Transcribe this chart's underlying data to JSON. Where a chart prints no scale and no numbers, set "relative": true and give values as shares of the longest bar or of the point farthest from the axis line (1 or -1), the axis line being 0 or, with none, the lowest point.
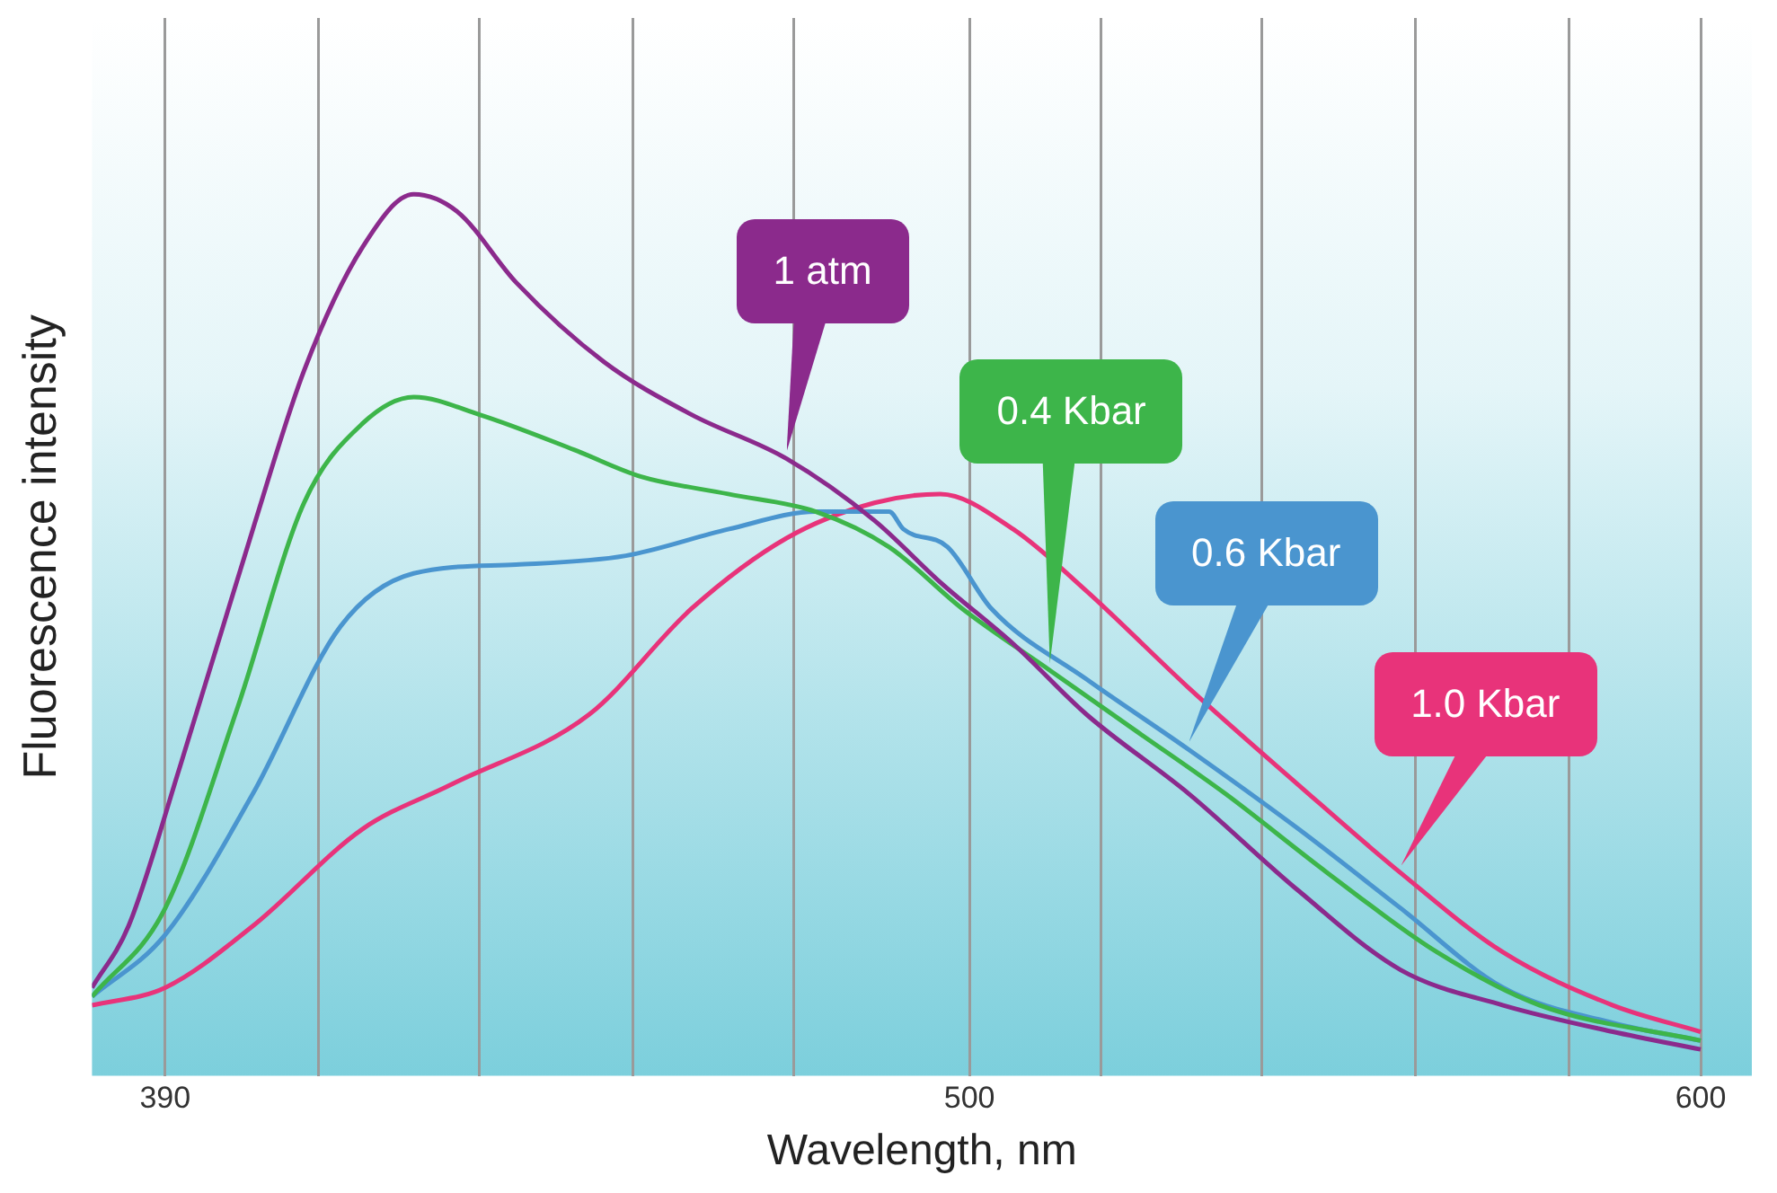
{
  "chart_data": {
    "type": "line",
    "relative": true,
    "xlabel": "Wavelength, nm",
    "ylabel": "Fluorescence intensity",
    "xlim": [
      380,
      607
    ],
    "xticks": [
      390,
      {
        "value": 411,
        "label": null
      },
      {
        "value": 433,
        "label": null
      },
      {
        "value": 454,
        "label": null
      },
      {
        "value": 476,
        "label": null
      },
      500,
      {
        "value": 518,
        "label": null
      },
      {
        "value": 540,
        "label": null
      },
      {
        "value": 561,
        "label": null
      },
      {
        "value": 582,
        "label": null
      },
      600
    ],
    "grid": "x",
    "marker": "none",
    "line_style": "solid",
    "legend": false,
    "series": [
      {
        "name": "1 atm",
        "color": "#8b2a8c",
        "x": [
          380,
          385,
          392,
          402,
          409,
          417,
          424,
          430,
          438,
          450,
          462,
          475,
          487,
          496,
          506,
          516,
          530,
          545,
          559,
          573,
          588,
          600
        ],
        "values": [
          0.1,
          0.17,
          0.35,
          0.62,
          0.8,
          0.94,
          1,
          0.98,
          0.9,
          0.81,
          0.75,
          0.7,
          0.63,
          0.56,
          0.49,
          0.41,
          0.32,
          0.21,
          0.12,
          0.08,
          0.05,
          0.03
        ]
      },
      {
        "name": "0.4 Kbar",
        "color": "#3db54a",
        "x": [
          380,
          390,
          400,
          409,
          417,
          424,
          433,
          446,
          455,
          467,
          479,
          489,
          499,
          511,
          523,
          535,
          549,
          564,
          578,
          600
        ],
        "values": [
          0.09,
          0.19,
          0.42,
          0.65,
          0.74,
          0.77,
          0.75,
          0.71,
          0.68,
          0.66,
          0.64,
          0.6,
          0.53,
          0.46,
          0.39,
          0.32,
          0.23,
          0.14,
          0.08,
          0.04
        ]
      },
      {
        "name": "0.6 Kbar",
        "color": "#4a95cf",
        "x": [
          380,
          390,
          402,
          414,
          424,
          438,
          453,
          467,
          479,
          489,
          491,
          497,
          503,
          516,
          530,
          545,
          559,
          573,
          588,
          600
        ],
        "values": [
          0.09,
          0.16,
          0.32,
          0.51,
          0.57,
          0.58,
          0.59,
          0.62,
          0.64,
          0.64,
          0.62,
          0.6,
          0.53,
          0.45,
          0.37,
          0.28,
          0.19,
          0.1,
          0.06,
          0.04
        ]
      },
      {
        "name": "1.0 Kbar",
        "color": "#e8337a",
        "x": [
          380,
          390,
          402,
          417,
          429,
          448,
          462,
          475,
          487,
          496,
          506,
          516,
          530,
          545,
          559,
          573,
          588,
          600
        ],
        "values": [
          0.08,
          0.1,
          0.17,
          0.28,
          0.33,
          0.41,
          0.53,
          0.61,
          0.65,
          0.66,
          0.62,
          0.55,
          0.44,
          0.33,
          0.23,
          0.14,
          0.08,
          0.05
        ]
      }
    ]
  }
}
